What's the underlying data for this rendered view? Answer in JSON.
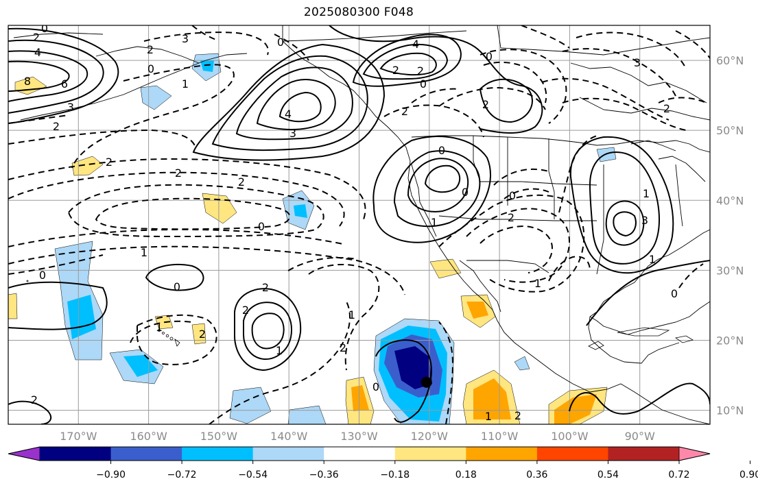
{
  "title": "2025080300 F048",
  "map": {
    "projection": "cylindrical",
    "lon_range": [
      -180,
      -80
    ],
    "lat_range": [
      8,
      65
    ],
    "lon_ticks": [
      {
        "lon": -170,
        "label": "170°W"
      },
      {
        "lon": -160,
        "label": "160°W"
      },
      {
        "lon": -150,
        "label": "150°W"
      },
      {
        "lon": -140,
        "label": "140°W"
      },
      {
        "lon": -130,
        "label": "130°W"
      },
      {
        "lon": -120,
        "label": "120°W"
      },
      {
        "lon": -110,
        "label": "110°W"
      },
      {
        "lon": -100,
        "label": "100°W"
      },
      {
        "lon": -90,
        "label": "90°W"
      }
    ],
    "lat_ticks": [
      {
        "lat": 60,
        "label": "60°N"
      },
      {
        "lat": 50,
        "label": "50°N"
      },
      {
        "lat": 40,
        "label": "40°N"
      },
      {
        "lat": 30,
        "label": "30°N"
      },
      {
        "lat": 20,
        "label": "20°N"
      },
      {
        "lat": 10,
        "label": "10°N"
      }
    ],
    "grid": true,
    "marker": {
      "lon": -120.4,
      "lat": 14.0,
      "color": "#000000"
    },
    "contour_labels": [
      "0",
      "2",
      "4",
      "6",
      "8",
      "3",
      "2",
      "0",
      "3",
      "4",
      "0",
      "2",
      "4",
      "3",
      "0",
      "2",
      "2",
      "2",
      "2",
      "0",
      "1",
      "2",
      "2",
      "0",
      "2",
      "1",
      "0",
      "0",
      "2",
      "2",
      "1",
      "2",
      "1",
      "2",
      "1",
      "0",
      "0",
      "1",
      "0",
      "2",
      "1",
      "2",
      "1",
      "3",
      "1",
      "0",
      "1",
      "0",
      "2",
      "3",
      "2"
    ]
  },
  "colorbar": {
    "tick_labels": [
      "−0.90",
      "−0.72",
      "−0.54",
      "−0.36",
      "−0.18",
      "0.18",
      "0.36",
      "0.54",
      "0.72",
      "0.90"
    ],
    "colors": [
      "#9932cc",
      "#000080",
      "#3a5fcd",
      "#00bfff",
      "#add8f7",
      "#ffffff",
      "#ffe680",
      "#ffa500",
      "#ff4500",
      "#b22222",
      "#ff88aa"
    ]
  }
}
